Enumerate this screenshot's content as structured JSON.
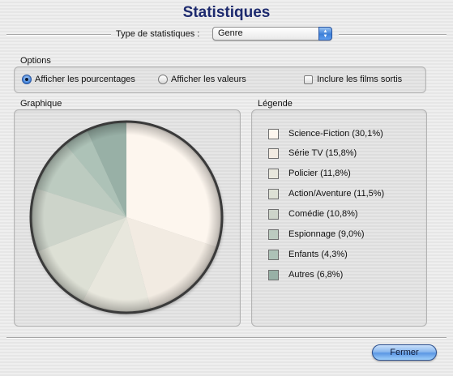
{
  "window": {
    "title": "Statistiques"
  },
  "stat_type": {
    "label": "Type de statistiques :",
    "selected": "Genre"
  },
  "options": {
    "title": "Options",
    "radio_percent": "Afficher les pourcentages",
    "radio_values": "Afficher les valeurs",
    "checkbox_released": "Inclure les films sortis",
    "selected_radio": "percent",
    "checkbox_checked": false
  },
  "graph": {
    "title": "Graphique"
  },
  "legend": {
    "title": "Légende",
    "items": [
      {
        "label": "Science-Fiction (30,1%)",
        "color": "#fdf6ee"
      },
      {
        "label": "Série TV (15,8%)",
        "color": "#f2ebe2"
      },
      {
        "label": "Policier (11,8%)",
        "color": "#e8e7dd"
      },
      {
        "label": "Action/Aventure (11,5%)",
        "color": "#dde0d5"
      },
      {
        "label": "Comédie (10,8%)",
        "color": "#cdd4ca"
      },
      {
        "label": "Espionnage (9,0%)",
        "color": "#bccbc0"
      },
      {
        "label": "Enfants (4,3%)",
        "color": "#adc2b7"
      },
      {
        "label": "Autres (6,8%)",
        "color": "#98b0a6"
      }
    ]
  },
  "chart_data": {
    "type": "pie",
    "categories": [
      "Science-Fiction",
      "Série TV",
      "Policier",
      "Action/Aventure",
      "Comédie",
      "Espionnage",
      "Enfants",
      "Autres"
    ],
    "values": [
      30.1,
      15.8,
      11.8,
      11.5,
      10.8,
      9.0,
      4.3,
      6.8
    ],
    "title": "Graphique",
    "colors": [
      "#fdf6ee",
      "#f2ebe2",
      "#e8e7dd",
      "#dde0d5",
      "#cdd4ca",
      "#bccbc0",
      "#adc2b7",
      "#98b0a6"
    ]
  },
  "buttons": {
    "close": "Fermer"
  }
}
